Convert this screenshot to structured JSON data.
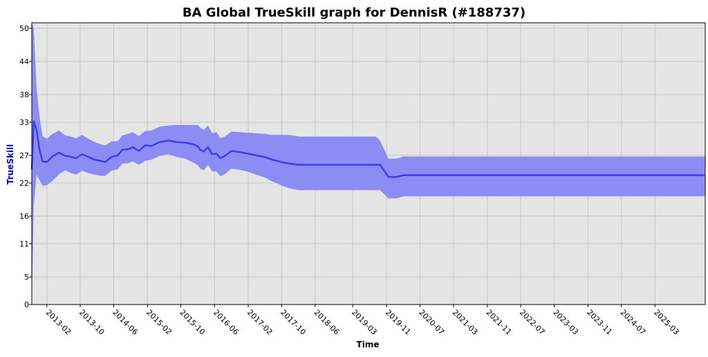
{
  "chart_data": {
    "type": "area",
    "title": "BA Global TrueSkill graph for DennisR (#188737)",
    "xlabel": "Time",
    "ylabel": "TrueSkill",
    "grid": true,
    "colors": {
      "plot_bg": "#e5e5e5",
      "grid": "#c8c8c8",
      "band": "#8c8cf5",
      "line": "#3c3cf0",
      "ylabel": "#0000cc"
    },
    "xlim": [
      "2012-10-15",
      "2026-03-01"
    ],
    "ylim": [
      0,
      51
    ],
    "x_ticks": [
      "2013-02",
      "2013-10",
      "2014-06",
      "2015-02",
      "2015-10",
      "2016-06",
      "2017-02",
      "2017-10",
      "2018-06",
      "2019-03",
      "2019-11",
      "2020-07",
      "2021-03",
      "2021-11",
      "2022-07",
      "2023-03",
      "2023-11",
      "2024-07",
      "2025-03"
    ],
    "y_ticks": [
      0,
      5,
      11,
      16,
      22,
      27,
      33,
      38,
      44,
      50
    ],
    "series": [
      {
        "type": "line",
        "x": [
          "2012-10-15",
          "2012-10-29",
          "2012-11-19",
          "2012-12-10",
          "2013-01-01",
          "2013-02-01",
          "2013-03-15",
          "2013-05-01",
          "2013-06-15",
          "2013-07-15",
          "2013-09-01",
          "2013-10-15",
          "2013-12-01",
          "2014-01-15",
          "2014-03-01",
          "2014-04-01",
          "2014-05-15",
          "2014-07-01",
          "2014-08-01",
          "2014-09-15",
          "2014-10-15",
          "2014-12-01",
          "2015-01-15",
          "2015-03-01",
          "2015-05-01",
          "2015-07-01",
          "2015-09-01",
          "2015-11-01",
          "2016-01-01",
          "2016-02-01",
          "2016-02-20",
          "2016-03-15",
          "2016-04-15",
          "2016-05-15",
          "2016-06-15",
          "2016-07-15",
          "2016-08-15",
          "2016-10-01",
          "2016-12-01",
          "2017-02-01",
          "2017-04-01",
          "2017-06-01",
          "2017-07-15",
          "2017-09-01",
          "2017-10-15",
          "2017-12-01",
          "2018-02-01",
          "2018-04-01",
          "2018-06-01",
          "2018-10-01",
          "2019-02-01",
          "2019-06-01",
          "2019-08-15",
          "2019-09-15",
          "2019-11-15",
          "2020-01-15",
          "2020-03-01",
          "2026-03-01"
        ],
        "values": [
          24.5,
          33.2,
          31.5,
          28.0,
          25.9,
          25.8,
          26.8,
          27.5,
          26.9,
          26.8,
          26.5,
          27.2,
          26.7,
          26.2,
          26.0,
          25.8,
          26.7,
          27.0,
          28.0,
          28.1,
          28.5,
          27.8,
          28.8,
          28.7,
          29.4,
          29.7,
          29.4,
          29.3,
          29.0,
          28.6,
          28.0,
          27.7,
          28.5,
          27.2,
          27.3,
          26.5,
          26.9,
          27.8,
          27.6,
          27.3,
          27.0,
          26.7,
          26.3,
          26.0,
          25.7,
          25.5,
          25.3,
          25.3,
          25.3,
          25.3,
          25.3,
          25.3,
          25.3,
          25.3,
          23.1,
          23.1,
          23.4,
          23.4
        ]
      },
      {
        "type": "band",
        "x": [
          "2012-10-15",
          "2012-10-29",
          "2012-11-19",
          "2012-12-10",
          "2013-01-01",
          "2013-02-01",
          "2013-03-15",
          "2013-05-01",
          "2013-06-15",
          "2013-07-15",
          "2013-09-01",
          "2013-10-15",
          "2013-12-01",
          "2014-01-15",
          "2014-03-01",
          "2014-04-01",
          "2014-05-15",
          "2014-07-01",
          "2014-08-01",
          "2014-09-15",
          "2014-10-15",
          "2014-12-01",
          "2015-01-15",
          "2015-03-01",
          "2015-05-01",
          "2015-07-01",
          "2015-09-01",
          "2015-11-01",
          "2016-01-01",
          "2016-02-01",
          "2016-02-20",
          "2016-03-15",
          "2016-04-15",
          "2016-05-15",
          "2016-06-15",
          "2016-07-15",
          "2016-08-15",
          "2016-10-01",
          "2016-12-01",
          "2017-02-01",
          "2017-04-01",
          "2017-06-01",
          "2017-07-15",
          "2017-09-01",
          "2017-10-15",
          "2017-12-01",
          "2018-02-01",
          "2018-04-01",
          "2018-06-01",
          "2018-10-01",
          "2019-02-01",
          "2019-06-01",
          "2019-08-15",
          "2019-09-15",
          "2019-11-15",
          "2020-01-15",
          "2020-03-01",
          "2026-03-01"
        ],
        "lower": [
          0.0,
          18.0,
          23.5,
          22.5,
          21.5,
          21.6,
          22.4,
          23.6,
          24.3,
          23.9,
          23.5,
          24.2,
          23.8,
          23.5,
          23.3,
          23.3,
          24.2,
          24.5,
          25.5,
          25.6,
          25.9,
          25.3,
          26.0,
          26.2,
          26.9,
          27.2,
          26.7,
          26.4,
          25.7,
          25.2,
          24.6,
          24.3,
          25.3,
          24.1,
          24.1,
          23.2,
          23.6,
          24.6,
          24.4,
          24.0,
          23.5,
          23.0,
          22.4,
          21.9,
          21.4,
          21.0,
          20.7,
          20.7,
          20.7,
          20.7,
          20.7,
          20.7,
          20.7,
          20.7,
          19.2,
          19.2,
          19.6,
          19.6
        ],
        "upper": [
          51.0,
          50.0,
          39.0,
          34.0,
          30.5,
          30.0,
          30.9,
          31.5,
          30.6,
          30.5,
          30.1,
          30.7,
          30.0,
          29.4,
          29.0,
          28.8,
          29.5,
          29.6,
          30.6,
          30.9,
          31.2,
          30.5,
          31.4,
          31.5,
          32.2,
          32.4,
          32.5,
          32.5,
          32.5,
          32.5,
          32.0,
          31.6,
          32.4,
          31.0,
          31.2,
          30.1,
          30.4,
          31.3,
          31.2,
          31.1,
          31.0,
          30.9,
          30.7,
          30.7,
          30.7,
          30.7,
          30.4,
          30.4,
          30.4,
          30.4,
          30.4,
          30.4,
          30.4,
          29.7,
          26.4,
          26.4,
          26.8,
          26.8
        ]
      }
    ]
  }
}
